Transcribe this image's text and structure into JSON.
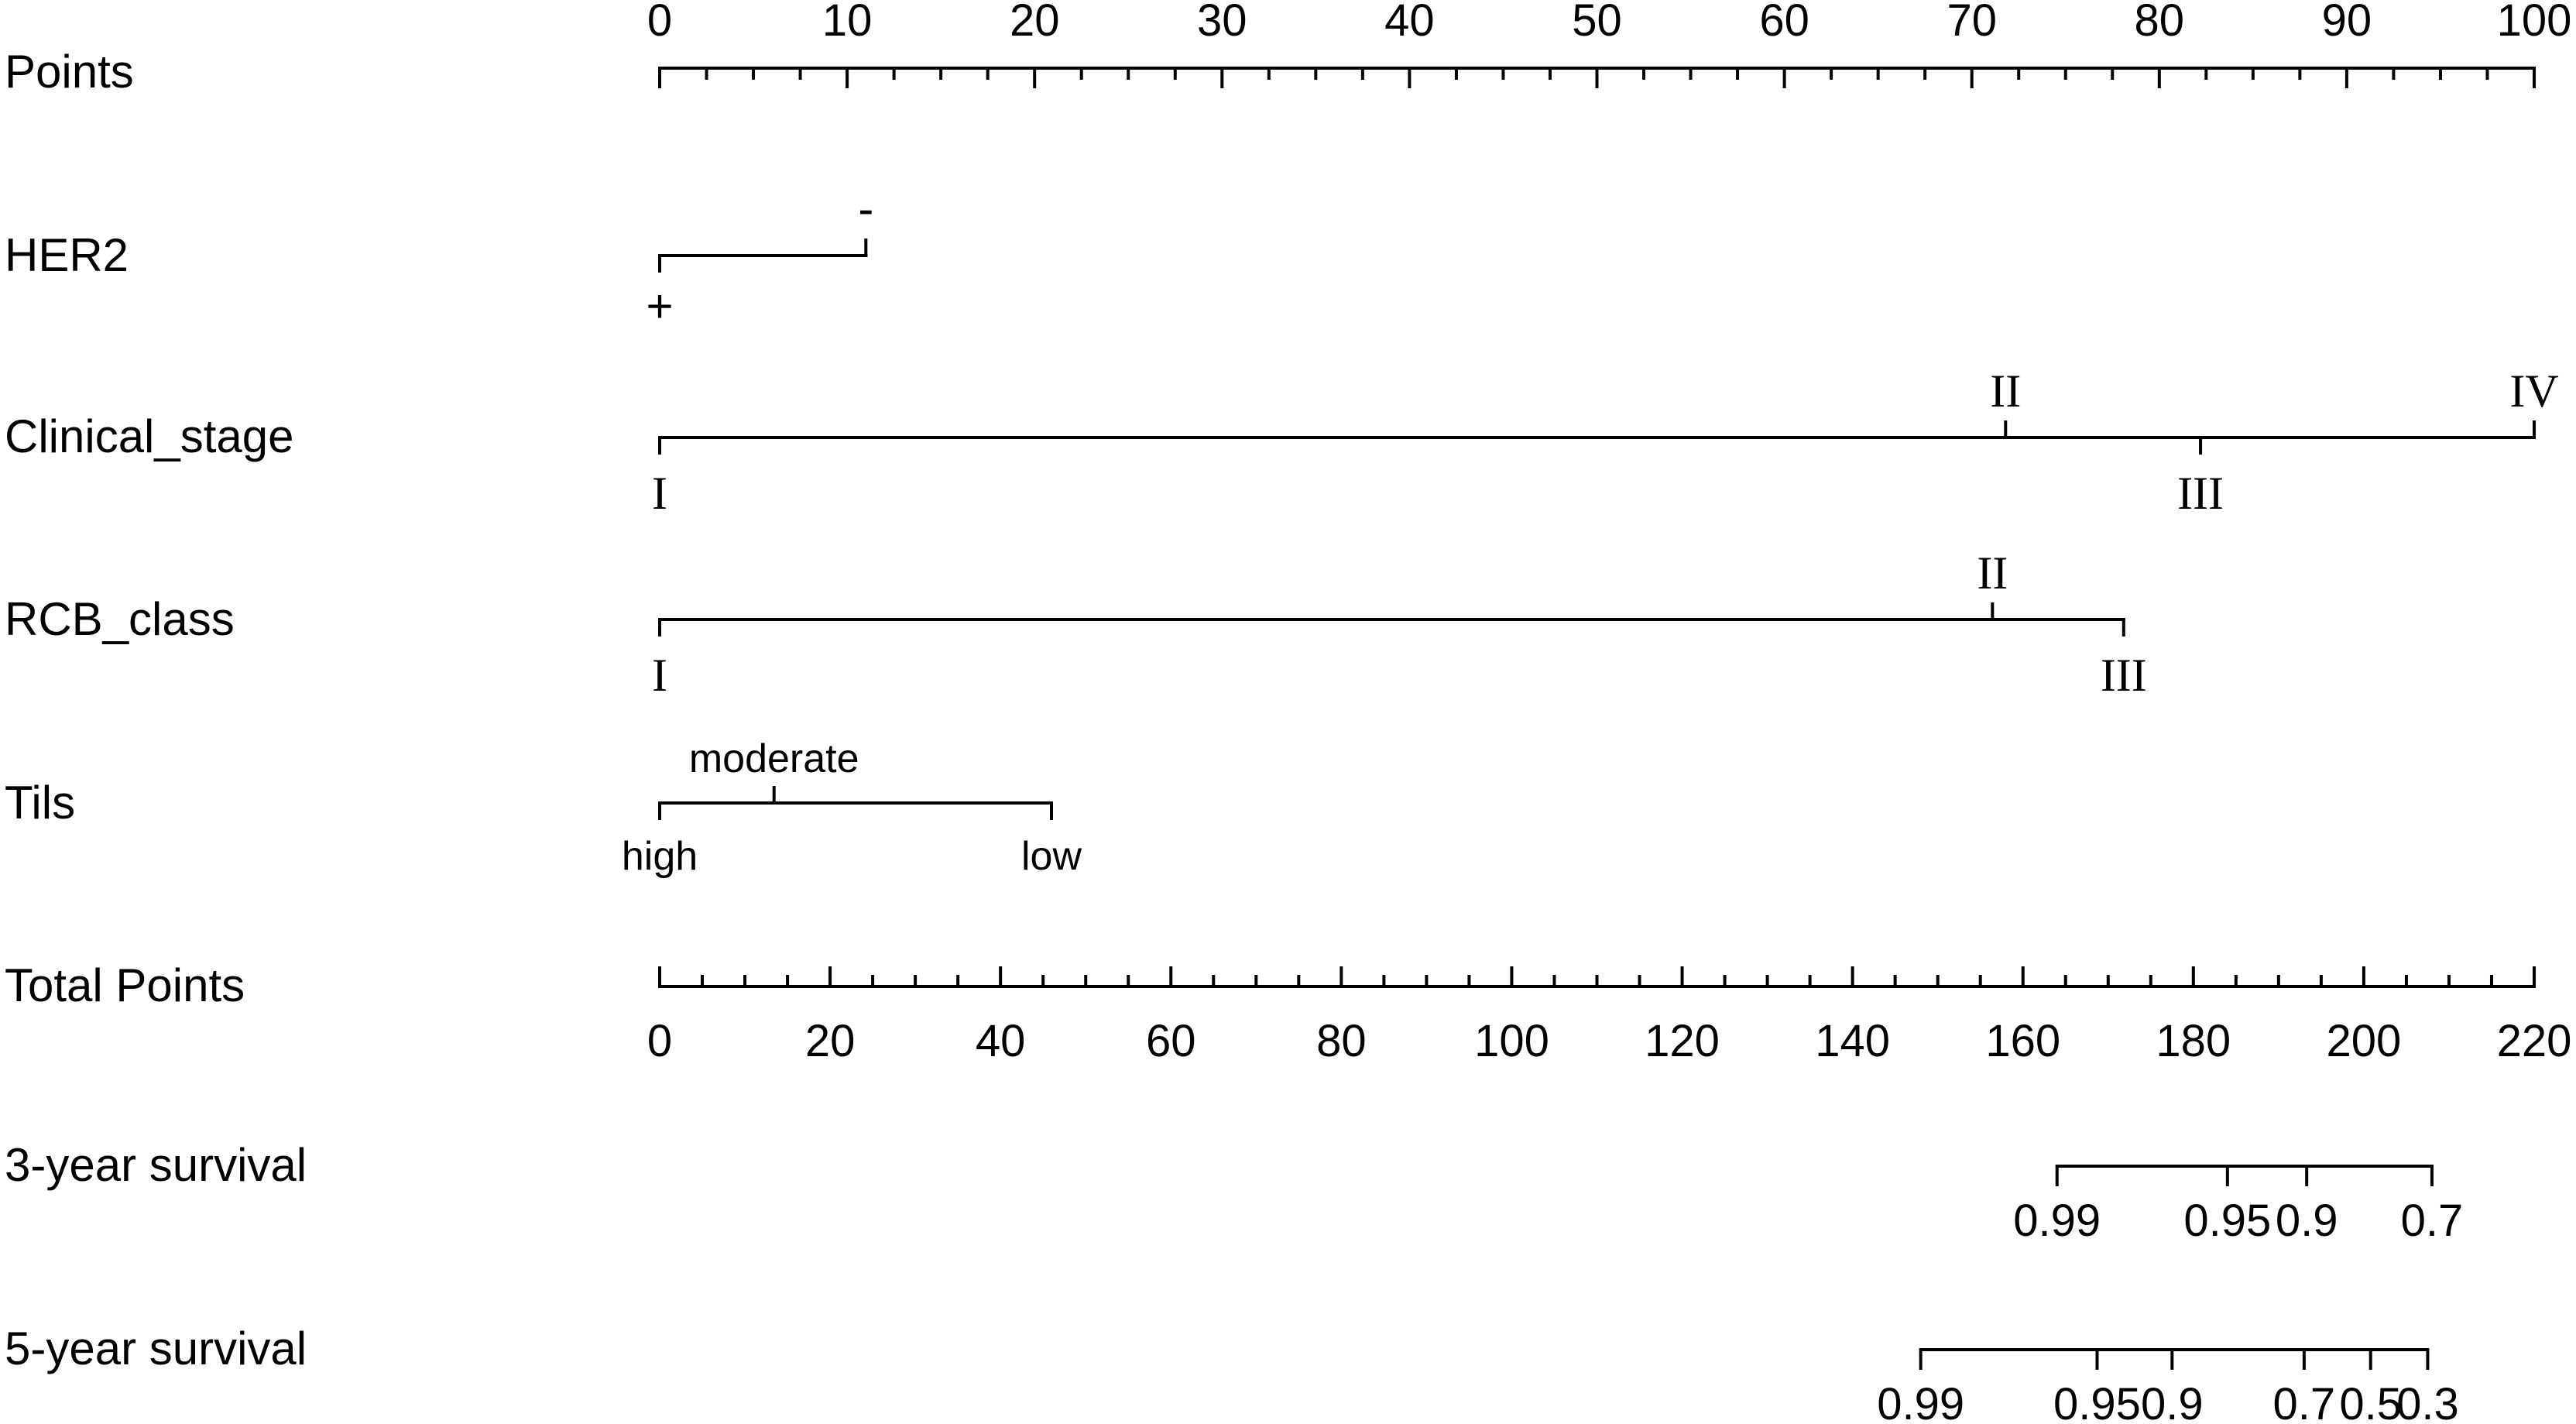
{
  "chart_data": {
    "type": "nomogram",
    "points_axis": {
      "label": "Points",
      "range": [
        0,
        100
      ],
      "ticks": [
        0,
        10,
        20,
        30,
        40,
        50,
        60,
        70,
        80,
        90,
        100
      ],
      "minor_step": 2.5
    },
    "predictors": [
      {
        "name": "HER2",
        "levels": [
          {
            "label": "+",
            "points": 0,
            "side": "below"
          },
          {
            "label": "-",
            "points": 11,
            "side": "above"
          }
        ]
      },
      {
        "name": "Clinical_stage",
        "levels": [
          {
            "label": "I",
            "points": 0,
            "side": "below"
          },
          {
            "label": "II",
            "points": 71.8,
            "side": "above"
          },
          {
            "label": "III",
            "points": 82.2,
            "side": "below"
          },
          {
            "label": "IV",
            "points": 100,
            "side": "above"
          }
        ]
      },
      {
        "name": "RCB_class",
        "levels": [
          {
            "label": "I",
            "points": 0,
            "side": "below"
          },
          {
            "label": "II",
            "points": 71.1,
            "side": "above"
          },
          {
            "label": "III",
            "points": 78.1,
            "side": "below"
          }
        ]
      },
      {
        "name": "Tils",
        "levels": [
          {
            "label": "high",
            "points": 0,
            "side": "below"
          },
          {
            "label": "moderate",
            "points": 6.1,
            "side": "above"
          },
          {
            "label": "low",
            "points": 20.9,
            "side": "below"
          }
        ]
      }
    ],
    "total_points_axis": {
      "label": "Total Points",
      "range": [
        0,
        220
      ],
      "ticks": [
        0,
        20,
        40,
        60,
        80,
        100,
        120,
        140,
        160,
        180,
        200,
        220
      ],
      "minor_step": 5
    },
    "survival_axes": [
      {
        "label": "3-year survival",
        "ticks": [
          {
            "label": "0.99",
            "total_points": 164
          },
          {
            "label": "0.95",
            "total_points": 184
          },
          {
            "label": "0.9",
            "total_points": 193.3
          },
          {
            "label": "0.7",
            "total_points": 208
          }
        ]
      },
      {
        "label": "5-year survival",
        "ticks": [
          {
            "label": "0.99",
            "total_points": 148
          },
          {
            "label": "0.95",
            "total_points": 168.7
          },
          {
            "label": "0.9",
            "total_points": 177.5
          },
          {
            "label": "0.7",
            "total_points": 193
          },
          {
            "label": "0.5",
            "total_points": 200.8
          },
          {
            "label": "0.3",
            "total_points": 207.5
          }
        ]
      }
    ]
  }
}
